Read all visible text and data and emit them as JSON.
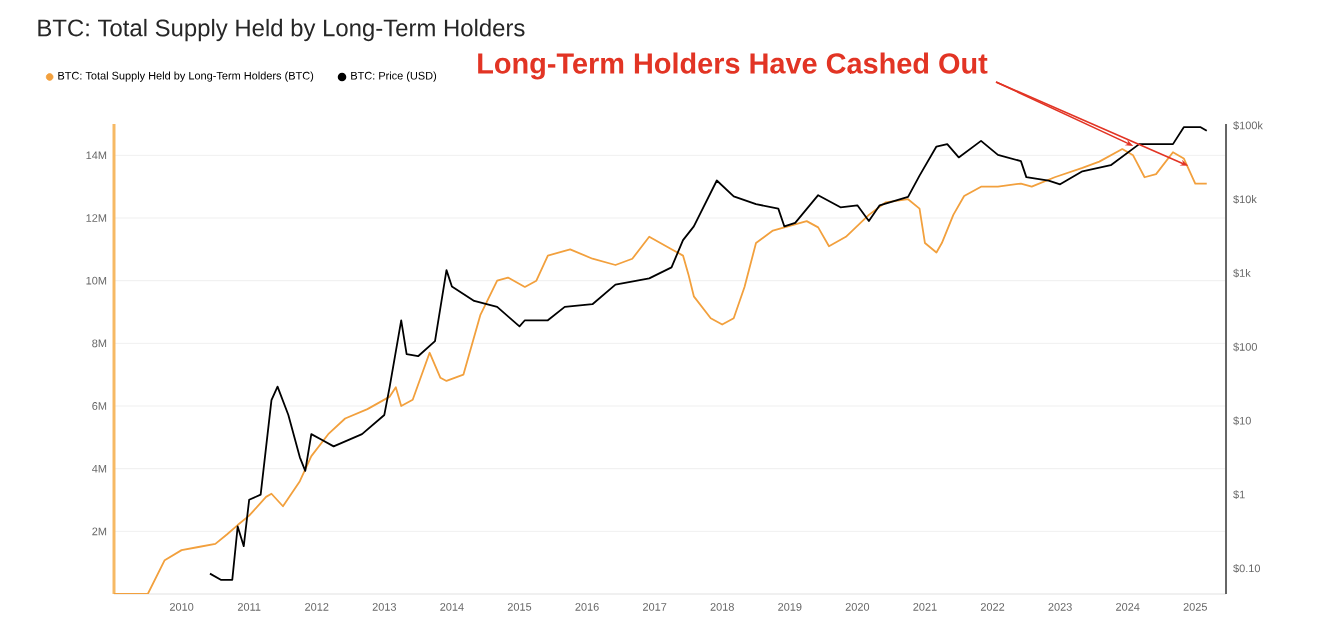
{
  "chart_data": {
    "type": "line",
    "title": "BTC: Total Supply Held by Long-Term Holders",
    "annotations": [
      {
        "text": "Long-Term Holders Have Cashed Out",
        "x": "2024-02",
        "y": 14300000
      }
    ],
    "xlim": [
      "2009-01-01",
      "2025-06-15"
    ],
    "xticks": [
      "2010",
      "2011",
      "2012",
      "2013",
      "2014",
      "2015",
      "2016",
      "2017",
      "2018",
      "2019",
      "2020",
      "2021",
      "2022",
      "2023",
      "2024",
      "2025"
    ],
    "ylim": [
      0,
      15000000
    ],
    "yticks": [
      {
        "value": 2000000,
        "label": "2M"
      },
      {
        "value": 4000000,
        "label": "4M"
      },
      {
        "value": 6000000,
        "label": "6M"
      },
      {
        "value": 8000000,
        "label": "8M"
      },
      {
        "value": 10000000,
        "label": "10M"
      },
      {
        "value": 12000000,
        "label": "12M"
      },
      {
        "value": 14000000,
        "label": "14M"
      }
    ],
    "y2lim": [
      0.045,
      105000
    ],
    "y2ticks": [
      {
        "value": 0.1,
        "label": "$0.10"
      },
      {
        "value": 1,
        "label": "$1"
      },
      {
        "value": 10,
        "label": "$10"
      },
      {
        "value": 100,
        "label": "$100"
      },
      {
        "value": 1000,
        "label": "$1k"
      },
      {
        "value": 10000,
        "label": "$10k"
      },
      {
        "value": 100000,
        "label": "$100k"
      }
    ],
    "log": "y2",
    "grid": "y",
    "legend": "top left",
    "series": [
      {
        "name": "BTC: Total Supply Held by Long-Term Holders (BTC)",
        "color": "#f2a03d",
        "x": [
          "2009-01",
          "2009-07",
          "2009-10",
          "2010-01",
          "2010-04",
          "2010-07",
          "2010-09",
          "2010-11",
          "2011-01",
          "2011-04",
          "2011-05",
          "2011-07",
          "2011-10",
          "2011-12",
          "2012-03",
          "2012-06",
          "2012-10",
          "2013-02",
          "2013-03",
          "2013-04",
          "2013-06",
          "2013-09",
          "2013-11",
          "2013-12",
          "2014-03",
          "2014-06",
          "2014-09",
          "2014-11",
          "2015-02",
          "2015-04",
          "2015-06",
          "2015-10",
          "2016-02",
          "2016-06",
          "2016-09",
          "2016-12",
          "2017-04",
          "2017-06",
          "2017-07",
          "2017-08",
          "2017-11",
          "2018-01",
          "2018-03",
          "2018-05",
          "2018-07",
          "2018-10",
          "2018-12",
          "2019-04",
          "2019-06",
          "2019-08",
          "2019-11",
          "2020-03",
          "2020-06",
          "2020-10",
          "2020-12",
          "2021-01",
          "2021-03",
          "2021-04",
          "2021-06",
          "2021-08",
          "2021-11",
          "2022-02",
          "2022-06",
          "2022-08",
          "2022-12",
          "2023-05",
          "2023-08",
          "2023-12",
          "2024-02",
          "2024-04",
          "2024-06",
          "2024-09",
          "2024-11",
          "2025-01",
          "2025-03"
        ],
        "values": [
          0,
          0,
          1080000,
          1400000,
          1500000,
          1600000,
          1900000,
          2200000,
          2500000,
          3100000,
          3200000,
          2800000,
          3600000,
          4400000,
          5100000,
          5600000,
          5900000,
          6300000,
          6600000,
          6000000,
          6200000,
          7700000,
          6900000,
          6800000,
          7000000,
          8900000,
          10000000,
          10100000,
          9800000,
          10000000,
          10800000,
          11000000,
          10700000,
          10500000,
          10700000,
          11400000,
          11000000,
          10800000,
          10200000,
          9500000,
          8800000,
          8600000,
          8800000,
          9800000,
          11200000,
          11600000,
          11700000,
          11900000,
          11700000,
          11100000,
          11400000,
          12100000,
          12500000,
          12600000,
          12300000,
          11200000,
          10900000,
          11200000,
          12100000,
          12700000,
          13000000,
          13000000,
          13100000,
          13000000,
          13300000,
          13600000,
          13800000,
          14200000,
          14000000,
          13300000,
          13400000,
          14100000,
          13900000,
          13100000,
          13100000
        ]
      },
      {
        "name": "BTC: Price (USD)",
        "color": "#000000",
        "axis": "y2",
        "x": [
          "2010-06",
          "2010-08",
          "2010-10",
          "2010-11",
          "2010-12",
          "2011-01",
          "2011-03",
          "2011-05",
          "2011-06",
          "2011-08",
          "2011-10",
          "2011-11",
          "2011-12",
          "2012-02",
          "2012-04",
          "2012-09",
          "2013-01",
          "2013-02",
          "2013-04",
          "2013-05",
          "2013-07",
          "2013-10",
          "2013-12",
          "2014-01",
          "2014-05",
          "2014-09",
          "2015-01",
          "2015-02",
          "2015-06",
          "2015-09",
          "2016-02",
          "2016-06",
          "2016-12",
          "2017-04",
          "2017-06",
          "2017-08",
          "2017-12",
          "2018-03",
          "2018-07",
          "2018-11",
          "2018-12",
          "2019-02",
          "2019-06",
          "2019-10",
          "2020-01",
          "2020-03",
          "2020-05",
          "2020-10",
          "2020-12",
          "2021-03",
          "2021-05",
          "2021-07",
          "2021-11",
          "2022-02",
          "2022-06",
          "2022-07",
          "2022-11",
          "2023-01",
          "2023-05",
          "2023-10",
          "2024-03",
          "2024-06",
          "2024-09",
          "2024-11",
          "2025-02",
          "2025-03"
        ],
        "values": [
          0.085,
          0.07,
          0.07,
          0.37,
          0.2,
          0.85,
          1.0,
          19,
          29,
          12,
          3.2,
          2.1,
          6.6,
          5.5,
          4.5,
          6.6,
          12,
          29,
          230,
          80,
          75,
          120,
          1100,
          660,
          420,
          350,
          190,
          230,
          230,
          350,
          380,
          700,
          850,
          1200,
          2800,
          4300,
          18000,
          11000,
          8600,
          7500,
          4300,
          4800,
          11400,
          7800,
          8300,
          5100,
          8300,
          10800,
          21000,
          52000,
          56000,
          37000,
          62000,
          40000,
          33000,
          20000,
          17900,
          16000,
          24000,
          29000,
          56000,
          56000,
          56000,
          95000,
          95000,
          85000
        ]
      }
    ]
  }
}
